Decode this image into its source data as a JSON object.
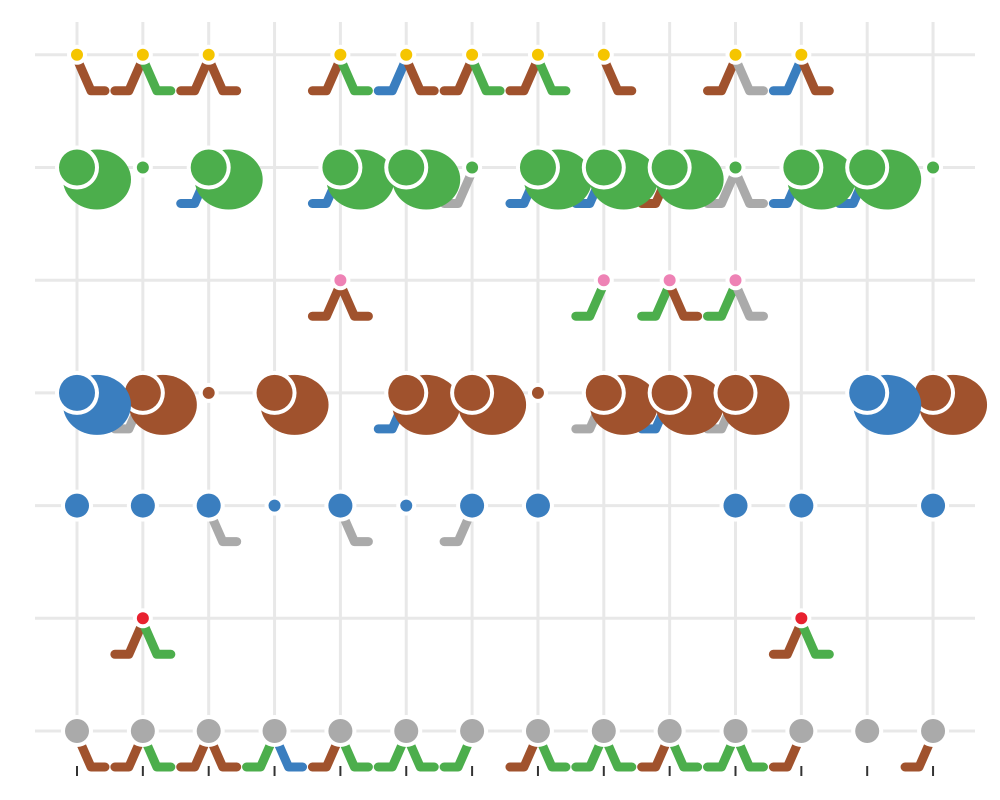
{
  "chart_data": {
    "type": "scatter",
    "title": "",
    "xlabel": "",
    "ylabel": "",
    "xlim": [
      0.5,
      14.5
    ],
    "ylim": [
      0.5,
      7.5
    ],
    "grid": true,
    "legend": "none",
    "x_ticks": [
      1,
      2,
      3,
      4,
      5,
      6,
      7,
      8,
      9,
      10,
      11,
      12,
      13,
      14
    ],
    "x_tick_labels": [
      "",
      "",
      "",
      "",
      "",
      "",
      "",
      "",
      "",
      "",
      "",
      "",
      "",
      ""
    ],
    "colors": {
      "brown": "#a0522d",
      "green": "#4cae4c",
      "blue": "#3a7ebf",
      "yellow": "#f5c500",
      "gray": "#aaaaaa",
      "pink": "#ee82b5",
      "red": "#e8212f",
      "grid": "#e8e8e8",
      "tick": "#333333"
    },
    "rows": [
      {
        "y": 7,
        "color": "yellow",
        "size": 1,
        "x": [
          1,
          2,
          3,
          5,
          6,
          7,
          8,
          9,
          11,
          12
        ]
      },
      {
        "y": 6,
        "color": "green",
        "size": 3,
        "x": [
          1,
          3,
          5,
          6,
          8,
          9,
          10,
          12,
          13
        ]
      },
      {
        "y": 6,
        "color": "green",
        "size": 1,
        "x": [
          2,
          7,
          11,
          14
        ]
      },
      {
        "y": 5,
        "color": "pink",
        "size": 1,
        "x": [
          5,
          9,
          10,
          11
        ]
      },
      {
        "y": 4,
        "color": "brown",
        "size": 3,
        "x": [
          2,
          4,
          6,
          7,
          9,
          10,
          11,
          14
        ]
      },
      {
        "y": 4,
        "color": "blue",
        "size": 3,
        "x": [
          1,
          13
        ]
      },
      {
        "y": 4,
        "color": "brown",
        "size": 1,
        "x": [
          3,
          8
        ]
      },
      {
        "y": 3,
        "color": "blue",
        "size": 2,
        "x": [
          1,
          2,
          3,
          5,
          7,
          8,
          11,
          12,
          14
        ]
      },
      {
        "y": 3,
        "color": "blue",
        "size": 1,
        "x": [
          4,
          6
        ]
      },
      {
        "y": 2,
        "color": "red",
        "size": 1,
        "x": [
          2,
          12
        ]
      },
      {
        "y": 1,
        "color": "gray",
        "size": 2,
        "x": [
          1,
          2,
          3,
          4,
          5,
          6,
          7,
          8,
          9,
          10,
          11,
          12,
          13,
          14
        ]
      }
    ],
    "stems": [
      {
        "y": 7,
        "x": 1,
        "color": "brown",
        "dir": "right"
      },
      {
        "y": 7,
        "x": 2,
        "color": "brown",
        "dir": "left"
      },
      {
        "y": 7,
        "x": 2,
        "color": "green",
        "dir": "right"
      },
      {
        "y": 7,
        "x": 3,
        "color": "brown",
        "dir": "left"
      },
      {
        "y": 7,
        "x": 3,
        "color": "brown",
        "dir": "right"
      },
      {
        "y": 7,
        "x": 5,
        "color": "brown",
        "dir": "left"
      },
      {
        "y": 7,
        "x": 5,
        "color": "green",
        "dir": "right"
      },
      {
        "y": 7,
        "x": 6,
        "color": "blue",
        "dir": "left"
      },
      {
        "y": 7,
        "x": 6,
        "color": "brown",
        "dir": "right"
      },
      {
        "y": 7,
        "x": 7,
        "color": "brown",
        "dir": "left"
      },
      {
        "y": 7,
        "x": 7,
        "color": "green",
        "dir": "right"
      },
      {
        "y": 7,
        "x": 8,
        "color": "brown",
        "dir": "left"
      },
      {
        "y": 7,
        "x": 8,
        "color": "green",
        "dir": "right"
      },
      {
        "y": 7,
        "x": 9,
        "color": "brown",
        "dir": "right"
      },
      {
        "y": 7,
        "x": 11,
        "color": "brown",
        "dir": "left"
      },
      {
        "y": 7,
        "x": 11,
        "color": "gray",
        "dir": "right"
      },
      {
        "y": 7,
        "x": 12,
        "color": "blue",
        "dir": "left"
      },
      {
        "y": 7,
        "x": 12,
        "color": "brown",
        "dir": "right"
      },
      {
        "y": 6,
        "x": 1,
        "color": "brown",
        "dir": "right"
      },
      {
        "y": 6,
        "x": 3,
        "color": "blue",
        "dir": "left"
      },
      {
        "y": 6,
        "x": 3,
        "color": "gray",
        "dir": "right"
      },
      {
        "y": 6,
        "x": 5,
        "color": "blue",
        "dir": "left"
      },
      {
        "y": 6,
        "x": 6,
        "color": "gray",
        "dir": "right"
      },
      {
        "y": 6,
        "x": 7,
        "color": "gray",
        "dir": "left"
      },
      {
        "y": 6,
        "x": 8,
        "color": "blue",
        "dir": "left"
      },
      {
        "y": 6,
        "x": 9,
        "color": "blue",
        "dir": "left"
      },
      {
        "y": 6,
        "x": 10,
        "color": "brown",
        "dir": "left"
      },
      {
        "y": 6,
        "x": 11,
        "color": "gray",
        "dir": "left"
      },
      {
        "y": 6,
        "x": 11,
        "color": "gray",
        "dir": "right"
      },
      {
        "y": 6,
        "x": 12,
        "color": "blue",
        "dir": "left"
      },
      {
        "y": 6,
        "x": 13,
        "color": "blue",
        "dir": "left"
      },
      {
        "y": 5,
        "x": 5,
        "color": "brown",
        "dir": "left"
      },
      {
        "y": 5,
        "x": 5,
        "color": "brown",
        "dir": "right"
      },
      {
        "y": 5,
        "x": 9,
        "color": "green",
        "dir": "left"
      },
      {
        "y": 5,
        "x": 10,
        "color": "green",
        "dir": "left"
      },
      {
        "y": 5,
        "x": 10,
        "color": "brown",
        "dir": "right"
      },
      {
        "y": 5,
        "x": 11,
        "color": "green",
        "dir": "left"
      },
      {
        "y": 5,
        "x": 11,
        "color": "gray",
        "dir": "right"
      },
      {
        "y": 4,
        "x": 1,
        "color": "gray",
        "dir": "right"
      },
      {
        "y": 4,
        "x": 2,
        "color": "gray",
        "dir": "left"
      },
      {
        "y": 4,
        "x": 6,
        "color": "blue",
        "dir": "left"
      },
      {
        "y": 4,
        "x": 7,
        "color": "gray",
        "dir": "right"
      },
      {
        "y": 4,
        "x": 9,
        "color": "gray",
        "dir": "left"
      },
      {
        "y": 4,
        "x": 9,
        "color": "gray",
        "dir": "right"
      },
      {
        "y": 4,
        "x": 10,
        "color": "blue",
        "dir": "left"
      },
      {
        "y": 4,
        "x": 11,
        "color": "gray",
        "dir": "left"
      },
      {
        "y": 3,
        "x": 3,
        "color": "gray",
        "dir": "right"
      },
      {
        "y": 3,
        "x": 5,
        "color": "gray",
        "dir": "right"
      },
      {
        "y": 3,
        "x": 7,
        "color": "gray",
        "dir": "left"
      },
      {
        "y": 2,
        "x": 2,
        "color": "brown",
        "dir": "left"
      },
      {
        "y": 2,
        "x": 2,
        "color": "green",
        "dir": "right"
      },
      {
        "y": 2,
        "x": 12,
        "color": "brown",
        "dir": "left"
      },
      {
        "y": 2,
        "x": 12,
        "color": "green",
        "dir": "right"
      },
      {
        "y": 1,
        "x": 1,
        "color": "brown",
        "dir": "right"
      },
      {
        "y": 1,
        "x": 2,
        "color": "brown",
        "dir": "left"
      },
      {
        "y": 1,
        "x": 2,
        "color": "green",
        "dir": "right"
      },
      {
        "y": 1,
        "x": 3,
        "color": "brown",
        "dir": "left"
      },
      {
        "y": 1,
        "x": 3,
        "color": "brown",
        "dir": "right"
      },
      {
        "y": 1,
        "x": 4,
        "color": "green",
        "dir": "left"
      },
      {
        "y": 1,
        "x": 4,
        "color": "blue",
        "dir": "right"
      },
      {
        "y": 1,
        "x": 5,
        "color": "brown",
        "dir": "left"
      },
      {
        "y": 1,
        "x": 5,
        "color": "green",
        "dir": "right"
      },
      {
        "y": 1,
        "x": 6,
        "color": "green",
        "dir": "left"
      },
      {
        "y": 1,
        "x": 6,
        "color": "green",
        "dir": "right"
      },
      {
        "y": 1,
        "x": 7,
        "color": "green",
        "dir": "left"
      },
      {
        "y": 1,
        "x": 8,
        "color": "brown",
        "dir": "left"
      },
      {
        "y": 1,
        "x": 8,
        "color": "green",
        "dir": "right"
      },
      {
        "y": 1,
        "x": 9,
        "color": "green",
        "dir": "left"
      },
      {
        "y": 1,
        "x": 9,
        "color": "green",
        "dir": "right"
      },
      {
        "y": 1,
        "x": 10,
        "color": "brown",
        "dir": "left"
      },
      {
        "y": 1,
        "x": 10,
        "color": "green",
        "dir": "right"
      },
      {
        "y": 1,
        "x": 11,
        "color": "green",
        "dir": "left"
      },
      {
        "y": 1,
        "x": 11,
        "color": "green",
        "dir": "right"
      },
      {
        "y": 1,
        "x": 12,
        "color": "brown",
        "dir": "left"
      },
      {
        "y": 1,
        "x": 14,
        "color": "brown",
        "dir": "left"
      }
    ]
  }
}
